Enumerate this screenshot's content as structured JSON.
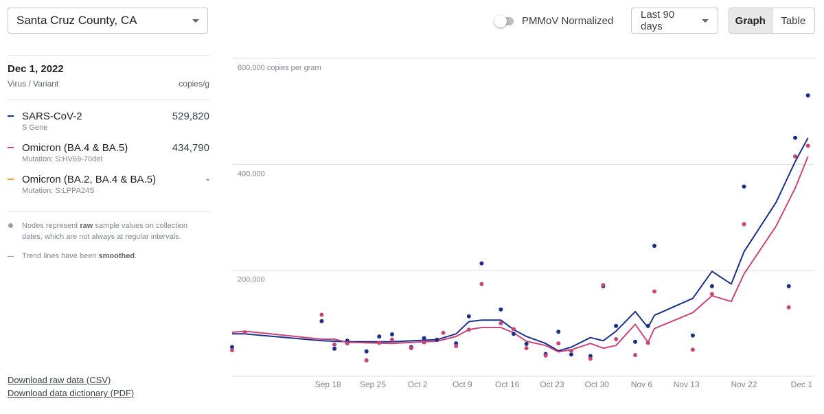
{
  "location": {
    "value": "Santa Cruz County, CA"
  },
  "controls": {
    "normalize_label": "PMMoV Normalized",
    "normalize_on": false,
    "range_label": "Last 90 days",
    "view_graph": "Graph",
    "view_table": "Table",
    "active_view": "Graph"
  },
  "panel": {
    "date": "Dec 1, 2022",
    "col_left": "Virus / Variant",
    "col_right": "copies/g",
    "variants": [
      {
        "name": "SARS-CoV-2",
        "sub": "S Gene",
        "value": "529,820",
        "color": "#1a2f8a"
      },
      {
        "name": "Omicron (BA.4 & BA.5)",
        "sub": "Mutation: S:HV69-70del",
        "value": "434,790",
        "color": "#c94578"
      },
      {
        "name": "Omicron (BA.2, BA.4 & BA.5)",
        "sub": "Mutation: S:LPPA24S",
        "value": "-",
        "color": "#f0a338"
      }
    ],
    "note_nodes": {
      "before": "Nodes represent ",
      "bold": "raw",
      "after": " sample values on collection dates, which are not always at regular intervals."
    },
    "note_trend": {
      "before": "Trend lines have been ",
      "bold": "smoothed",
      "after": "."
    }
  },
  "downloads": {
    "csv": "Download raw data (CSV)",
    "dictionary": "Download data dictionary (PDF)"
  },
  "chart_data": {
    "type": "line",
    "ylabel": "copies per gram",
    "ylim": [
      0,
      600000
    ],
    "y_gridlines": [
      {
        "value": 200000,
        "label": "200,000"
      },
      {
        "value": 400000,
        "label": "400,000"
      },
      {
        "value": 600000,
        "label": "600,000 copies per gram"
      }
    ],
    "xlim": [
      "2022-09-03",
      "2022-12-03"
    ],
    "x_ticks": [
      {
        "date": "2022-09-18",
        "label": "Sep 18"
      },
      {
        "date": "2022-09-25",
        "label": "Sep 25"
      },
      {
        "date": "2022-10-02",
        "label": "Oct 2"
      },
      {
        "date": "2022-10-09",
        "label": "Oct 9"
      },
      {
        "date": "2022-10-16",
        "label": "Oct 16"
      },
      {
        "date": "2022-10-23",
        "label": "Oct 23"
      },
      {
        "date": "2022-10-30",
        "label": "Oct 30"
      },
      {
        "date": "2022-11-06",
        "label": "Nov 6"
      },
      {
        "date": "2022-11-13",
        "label": "Nov 13"
      },
      {
        "date": "2022-11-22",
        "label": "Nov 22"
      },
      {
        "date": "2022-12-01",
        "label": "Dec 1"
      }
    ],
    "series": [
      {
        "name": "SARS-CoV-2",
        "color": "#1a2f8a",
        "points": [
          [
            "2022-09-03",
            55000
          ],
          [
            "2022-09-17",
            104000
          ],
          [
            "2022-09-19",
            52000
          ],
          [
            "2022-09-21",
            67000
          ],
          [
            "2022-09-24",
            47000
          ],
          [
            "2022-09-26",
            75000
          ],
          [
            "2022-09-28",
            79000
          ],
          [
            "2022-10-01",
            55000
          ],
          [
            "2022-10-03",
            72000
          ],
          [
            "2022-10-05",
            69000
          ],
          [
            "2022-10-08",
            62000
          ],
          [
            "2022-10-10",
            113000
          ],
          [
            "2022-10-12",
            213000
          ],
          [
            "2022-10-15",
            126000
          ],
          [
            "2022-10-17",
            80000
          ],
          [
            "2022-10-19",
            61000
          ],
          [
            "2022-10-22",
            42000
          ],
          [
            "2022-10-24",
            84000
          ],
          [
            "2022-10-26",
            41000
          ],
          [
            "2022-10-29",
            38000
          ],
          [
            "2022-10-31",
            170000
          ],
          [
            "2022-11-02",
            95000
          ],
          [
            "2022-11-05",
            65000
          ],
          [
            "2022-11-07",
            95000
          ],
          [
            "2022-11-08",
            246000
          ],
          [
            "2022-11-14",
            77000
          ],
          [
            "2022-11-17",
            170000
          ],
          [
            "2022-11-22",
            358000
          ],
          [
            "2022-11-29",
            170000
          ],
          [
            "2022-11-30",
            450000
          ],
          [
            "2022-12-02",
            530000
          ]
        ],
        "trend": [
          [
            "2022-09-03",
            80000
          ],
          [
            "2022-09-05",
            80000
          ],
          [
            "2022-09-17",
            67000
          ],
          [
            "2022-09-21",
            65000
          ],
          [
            "2022-09-28",
            65000
          ],
          [
            "2022-10-03",
            68000
          ],
          [
            "2022-10-05",
            69000
          ],
          [
            "2022-10-08",
            80000
          ],
          [
            "2022-10-10",
            103000
          ],
          [
            "2022-10-12",
            106000
          ],
          [
            "2022-10-15",
            106000
          ],
          [
            "2022-10-17",
            88000
          ],
          [
            "2022-10-19",
            75000
          ],
          [
            "2022-10-22",
            62000
          ],
          [
            "2022-10-24",
            48000
          ],
          [
            "2022-10-26",
            55000
          ],
          [
            "2022-10-29",
            73000
          ],
          [
            "2022-10-31",
            67000
          ],
          [
            "2022-11-02",
            85000
          ],
          [
            "2022-11-05",
            122000
          ],
          [
            "2022-11-07",
            92000
          ],
          [
            "2022-11-08",
            115000
          ],
          [
            "2022-11-14",
            147000
          ],
          [
            "2022-11-17",
            198000
          ],
          [
            "2022-11-20",
            174000
          ],
          [
            "2022-11-22",
            235000
          ],
          [
            "2022-11-27",
            328000
          ],
          [
            "2022-11-30",
            405000
          ],
          [
            "2022-12-02",
            450000
          ]
        ]
      },
      {
        "name": "Omicron (BA.4 & BA.5)",
        "color": "#c94578",
        "points": [
          [
            "2022-09-03",
            49000
          ],
          [
            "2022-09-05",
            83000
          ],
          [
            "2022-09-17",
            116000
          ],
          [
            "2022-09-19",
            60000
          ],
          [
            "2022-09-21",
            62000
          ],
          [
            "2022-09-24",
            30000
          ],
          [
            "2022-09-26",
            63000
          ],
          [
            "2022-09-28",
            69000
          ],
          [
            "2022-10-01",
            53000
          ],
          [
            "2022-10-03",
            64000
          ],
          [
            "2022-10-06",
            82000
          ],
          [
            "2022-10-08",
            57000
          ],
          [
            "2022-10-10",
            88000
          ],
          [
            "2022-10-12",
            174000
          ],
          [
            "2022-10-15",
            100000
          ],
          [
            "2022-10-17",
            89000
          ],
          [
            "2022-10-19",
            53000
          ],
          [
            "2022-10-22",
            39000
          ],
          [
            "2022-10-24",
            62000
          ],
          [
            "2022-10-26",
            48000
          ],
          [
            "2022-10-29",
            33000
          ],
          [
            "2022-10-31",
            172000
          ],
          [
            "2022-11-02",
            70000
          ],
          [
            "2022-11-05",
            40000
          ],
          [
            "2022-11-07",
            63000
          ],
          [
            "2022-11-08",
            160000
          ],
          [
            "2022-11-14",
            50000
          ],
          [
            "2022-11-17",
            155000
          ],
          [
            "2022-11-22",
            287000
          ],
          [
            "2022-11-29",
            130000
          ],
          [
            "2022-11-30",
            415000
          ],
          [
            "2022-12-02",
            435000
          ]
        ],
        "trend": [
          [
            "2022-09-03",
            83000
          ],
          [
            "2022-09-05",
            85000
          ],
          [
            "2022-09-17",
            70000
          ],
          [
            "2022-09-19",
            70000
          ],
          [
            "2022-09-21",
            64000
          ],
          [
            "2022-09-28",
            62000
          ],
          [
            "2022-10-03",
            65000
          ],
          [
            "2022-10-05",
            66000
          ],
          [
            "2022-10-08",
            75000
          ],
          [
            "2022-10-10",
            88000
          ],
          [
            "2022-10-12",
            92000
          ],
          [
            "2022-10-15",
            92000
          ],
          [
            "2022-10-17",
            82000
          ],
          [
            "2022-10-19",
            66000
          ],
          [
            "2022-10-22",
            58000
          ],
          [
            "2022-10-24",
            46000
          ],
          [
            "2022-10-26",
            50000
          ],
          [
            "2022-10-29",
            62000
          ],
          [
            "2022-10-31",
            53000
          ],
          [
            "2022-11-02",
            58000
          ],
          [
            "2022-11-05",
            98000
          ],
          [
            "2022-11-07",
            64000
          ],
          [
            "2022-11-08",
            90000
          ],
          [
            "2022-11-14",
            120000
          ],
          [
            "2022-11-17",
            152000
          ],
          [
            "2022-11-20",
            141000
          ],
          [
            "2022-11-22",
            193000
          ],
          [
            "2022-11-27",
            283000
          ],
          [
            "2022-11-30",
            355000
          ],
          [
            "2022-12-02",
            415000
          ]
        ]
      }
    ]
  }
}
